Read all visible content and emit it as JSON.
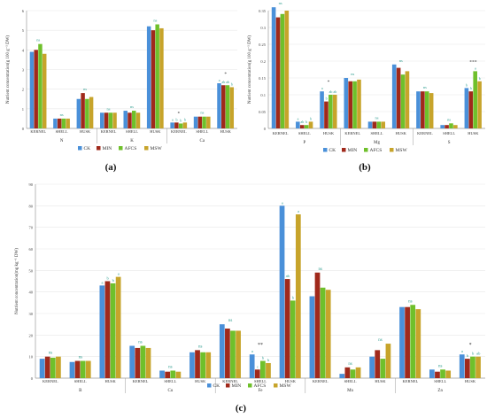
{
  "legend": [
    "CK",
    "MIN",
    "AFCS",
    "MSW"
  ],
  "colors": {
    "CK": "#4a90d9",
    "MIN": "#a0291b",
    "AFCS": "#6fc02b",
    "MSW": "#c7a42b",
    "sig": "#2e9d8f",
    "grid": "#e8e8e8",
    "axis": "#9a9a9a"
  },
  "chart_data": [
    {
      "id": "a",
      "type": "bar",
      "panel_label": "(a)",
      "ylabel": "Nutrient concentration(g 100 g⁻¹ DW)",
      "ylim": [
        0,
        6
      ],
      "yticks": [
        0,
        1,
        2,
        3,
        4,
        5,
        6
      ],
      "elements": [
        "N",
        "K",
        "Ca"
      ],
      "groups": [
        {
          "element": "N",
          "part": "KERNEL",
          "values": [
            3.9,
            4.0,
            4.3,
            3.8
          ],
          "letters": [
            "ns",
            "",
            "",
            ""
          ]
        },
        {
          "element": "N",
          "part": "SHELL",
          "values": [
            0.5,
            0.5,
            0.5,
            0.5
          ],
          "letters": [
            "ns",
            "",
            "",
            ""
          ]
        },
        {
          "element": "N",
          "part": "HUSK",
          "values": [
            1.5,
            1.8,
            1.5,
            1.6
          ],
          "letters": [
            "ns",
            "",
            "",
            ""
          ]
        },
        {
          "element": "K",
          "part": "KERNEL",
          "values": [
            0.8,
            0.8,
            0.8,
            0.8
          ],
          "letters": [
            "ns",
            "",
            "",
            ""
          ]
        },
        {
          "element": "K",
          "part": "SHELL",
          "values": [
            0.9,
            0.8,
            0.9,
            0.8
          ],
          "letters": [
            "ns",
            "",
            "",
            ""
          ]
        },
        {
          "element": "K",
          "part": "HUSK",
          "values": [
            5.2,
            5.0,
            5.3,
            5.1
          ],
          "letters": [
            "ns",
            "",
            "",
            ""
          ]
        },
        {
          "element": "Ca",
          "part": "KERNEL",
          "values": [
            0.3,
            0.3,
            0.25,
            0.3
          ],
          "letters": [
            "a",
            "b",
            "b",
            "b"
          ]
        },
        {
          "element": "Ca",
          "part": "SHELL",
          "values": [
            0.6,
            0.6,
            0.6,
            0.6
          ],
          "letters": [
            "ns",
            "",
            "",
            ""
          ]
        },
        {
          "element": "Ca",
          "part": "HUSK",
          "values": [
            2.3,
            2.2,
            2.2,
            2.1
          ],
          "letters": [
            "a",
            "ab",
            "ab",
            "b"
          ]
        }
      ],
      "group_stars": {
        "6": "*",
        "8": "*"
      }
    },
    {
      "id": "b",
      "type": "bar",
      "panel_label": "(b)",
      "ylabel": "Nutrient concentration(g 100 g⁻¹ DW)",
      "ylim": [
        0,
        0.35
      ],
      "yticks": [
        0,
        0.05,
        0.1,
        0.15,
        0.2,
        0.25,
        0.3,
        0.35
      ],
      "ytick_labels": [
        "0",
        "0.05",
        "0.1",
        "0.15",
        "0.2",
        "0.25",
        "0.3",
        "0.35"
      ],
      "elements": [
        "P",
        "Mg",
        "S"
      ],
      "groups": [
        {
          "element": "P",
          "part": "KERNEL",
          "values": [
            0.36,
            0.33,
            0.34,
            0.35
          ],
          "letters": [
            "ns",
            "",
            "",
            ""
          ]
        },
        {
          "element": "P",
          "part": "SHELL",
          "values": [
            0.02,
            0.01,
            0.01,
            0.02
          ],
          "letters": [
            "a",
            "ab",
            "b",
            "b"
          ]
        },
        {
          "element": "P",
          "part": "HUSK",
          "values": [
            0.11,
            0.08,
            0.1,
            0.1
          ],
          "letters": [
            "a",
            "b",
            "ab",
            "ab"
          ]
        },
        {
          "element": "Mg",
          "part": "KERNEL",
          "values": [
            0.15,
            0.14,
            0.14,
            0.145
          ],
          "letters": [
            "ns",
            "",
            "",
            ""
          ]
        },
        {
          "element": "Mg",
          "part": "SHELL",
          "values": [
            0.02,
            0.02,
            0.02,
            0.02
          ],
          "letters": [
            "ns",
            "",
            "",
            ""
          ]
        },
        {
          "element": "Mg",
          "part": "HUSK",
          "values": [
            0.19,
            0.18,
            0.16,
            0.17
          ],
          "letters": [
            "ns",
            "",
            "",
            ""
          ]
        },
        {
          "element": "S",
          "part": "KERNEL",
          "values": [
            0.11,
            0.11,
            0.11,
            0.105
          ],
          "letters": [
            "ns",
            "",
            "",
            ""
          ]
        },
        {
          "element": "S",
          "part": "SHELL",
          "values": [
            0.01,
            0.01,
            0.015,
            0.01
          ],
          "letters": [
            "ns",
            "",
            "",
            ""
          ]
        },
        {
          "element": "S",
          "part": "HUSK",
          "values": [
            0.12,
            0.11,
            0.17,
            0.14
          ],
          "letters": [
            "b",
            "b",
            "a",
            "b"
          ]
        }
      ],
      "group_stars": {
        "2": "*",
        "8": "***"
      }
    },
    {
      "id": "c",
      "type": "bar",
      "panel_label": "(c)",
      "ylabel": "Nutrient concentration(mg kg⁻¹ DW)",
      "ylim": [
        0,
        90
      ],
      "yticks": [
        0,
        10,
        20,
        30,
        40,
        50,
        60,
        70,
        80,
        90
      ],
      "elements": [
        "B",
        "Cu",
        "Fe",
        "Mn",
        "Zn"
      ],
      "groups": [
        {
          "element": "B",
          "part": "KERNEL",
          "values": [
            9,
            10,
            9.5,
            10
          ],
          "letters": [
            "ns",
            "",
            "",
            ""
          ]
        },
        {
          "element": "B",
          "part": "SHELL",
          "values": [
            7.5,
            8,
            8,
            8
          ],
          "letters": [
            "ns",
            "",
            "",
            ""
          ]
        },
        {
          "element": "B",
          "part": "HUSK",
          "values": [
            43,
            45,
            44,
            47
          ],
          "letters": [
            "a",
            "b",
            "b",
            "a"
          ]
        },
        {
          "element": "Cu",
          "part": "KERNEL",
          "values": [
            15,
            14,
            15,
            14
          ],
          "letters": [
            "ns",
            "",
            "",
            ""
          ]
        },
        {
          "element": "Cu",
          "part": "SHELL",
          "values": [
            3.5,
            3,
            3.5,
            3
          ],
          "letters": [
            "ns",
            "",
            "",
            ""
          ]
        },
        {
          "element": "Cu",
          "part": "HUSK",
          "values": [
            12,
            13,
            12,
            12
          ],
          "letters": [
            "ns",
            "",
            "",
            ""
          ]
        },
        {
          "element": "Fe",
          "part": "KERNEL",
          "values": [
            25,
            23,
            22,
            22
          ],
          "letters": [
            "ns",
            "",
            "",
            ""
          ]
        },
        {
          "element": "Fe",
          "part": "SHELL",
          "values": [
            11,
            4,
            8,
            7
          ],
          "letters": [
            "a",
            "c",
            "b",
            "b"
          ]
        },
        {
          "element": "Fe",
          "part": "HUSK",
          "values": [
            80,
            46,
            36,
            76
          ],
          "letters": [
            "a",
            "ab",
            "b",
            "a"
          ]
        },
        {
          "element": "Mn",
          "part": "KERNEL",
          "values": [
            38,
            49,
            42,
            41
          ],
          "letters": [
            "ns",
            "",
            "",
            ""
          ]
        },
        {
          "element": "Mn",
          "part": "SHELL",
          "values": [
            2,
            5,
            4,
            5
          ],
          "letters": [
            "ns",
            "",
            "",
            ""
          ]
        },
        {
          "element": "Mn",
          "part": "HUSK",
          "values": [
            10,
            13,
            9,
            16
          ],
          "letters": [
            "ns",
            "",
            "",
            ""
          ]
        },
        {
          "element": "Zn",
          "part": "KERNEL",
          "values": [
            33,
            33,
            34,
            32
          ],
          "letters": [
            "ns",
            "",
            "",
            ""
          ]
        },
        {
          "element": "Zn",
          "part": "SHELL",
          "values": [
            4,
            3,
            4,
            3.5
          ],
          "letters": [
            "ns",
            "",
            "",
            ""
          ]
        },
        {
          "element": "Zn",
          "part": "HUSK",
          "values": [
            11,
            9,
            10,
            10
          ],
          "letters": [
            "a",
            "b",
            "b",
            "ab"
          ]
        }
      ],
      "group_stars": {
        "7": "**",
        "14": "*"
      }
    }
  ]
}
